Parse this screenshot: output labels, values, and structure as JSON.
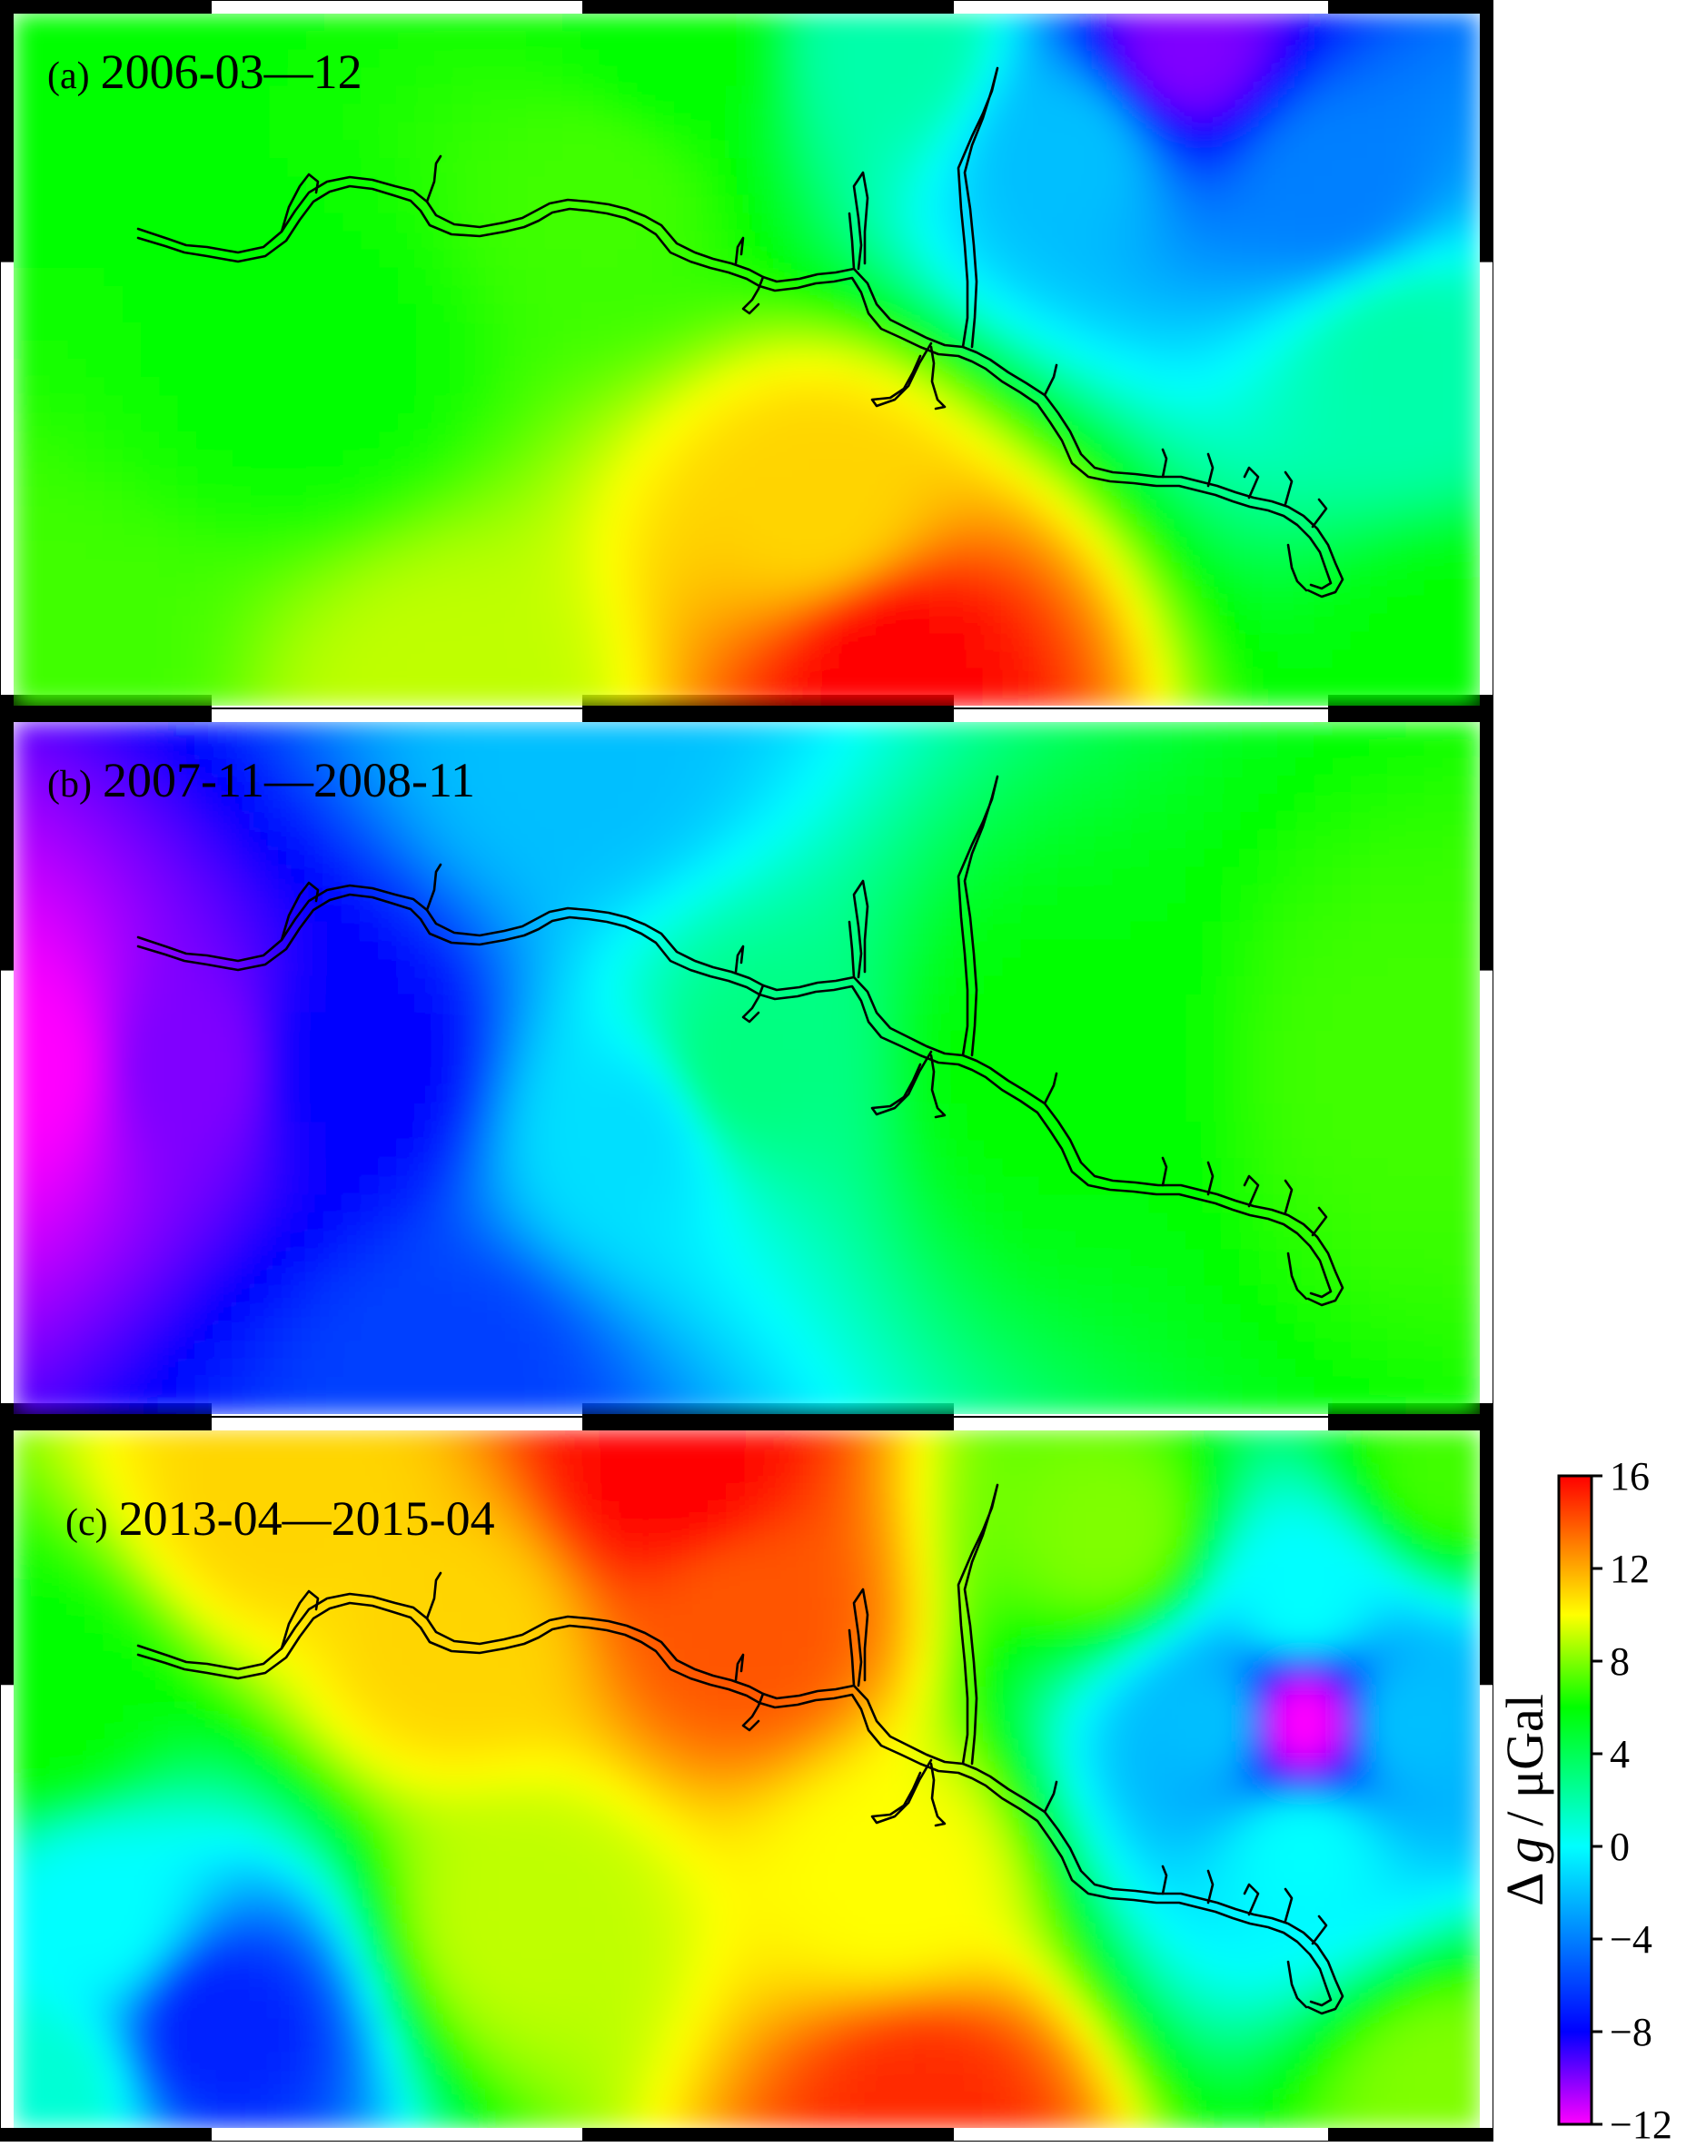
{
  "panels": [
    {
      "prefix": "(a)",
      "period": "2006-03—12",
      "field": [
        {
          "at": [
            0.2,
            0.5
          ],
          "v": 6
        },
        {
          "at": [
            0.6,
            0.95
          ],
          "v": 16
        },
        {
          "at": [
            0.55,
            0.72
          ],
          "v": 11
        },
        {
          "at": [
            0.3,
            1.0
          ],
          "v": 9
        },
        {
          "at": [
            0.8,
            0.05
          ],
          "v": -10
        },
        {
          "at": [
            0.72,
            0.2
          ],
          "v": -2
        },
        {
          "at": [
            0.95,
            0.5
          ],
          "v": 2
        },
        {
          "at": [
            0.9,
            0.25
          ],
          "v": -4
        },
        {
          "at": [
            0.02,
            0.05
          ],
          "v": 6
        },
        {
          "at": [
            0.4,
            0.25
          ],
          "v": 7
        },
        {
          "at": [
            0.02,
            0.95
          ],
          "v": 7
        },
        {
          "at": [
            0.99,
            0.95
          ],
          "v": 6
        },
        {
          "at": [
            0.45,
            0.05
          ],
          "v": 6
        },
        {
          "at": [
            0.6,
            0.05
          ],
          "v": 2
        }
      ]
    },
    {
      "prefix": "(b)",
      "period": "2007-11—2008-11",
      "field": [
        {
          "at": [
            0.01,
            0.5
          ],
          "v": -12
        },
        {
          "at": [
            0.23,
            0.5
          ],
          "v": -8
        },
        {
          "at": [
            0.42,
            0.6
          ],
          "v": -1
        },
        {
          "at": [
            0.5,
            0.5
          ],
          "v": 3
        },
        {
          "at": [
            0.7,
            0.5
          ],
          "v": 6
        },
        {
          "at": [
            0.95,
            0.5
          ],
          "v": 7
        },
        {
          "at": [
            0.38,
            0.05
          ],
          "v": -2
        },
        {
          "at": [
            0.3,
            0.95
          ],
          "v": -6
        },
        {
          "at": [
            0.12,
            0.5
          ],
          "v": -10
        }
      ]
    },
    {
      "prefix": "(c)",
      "period": "2013-04—2015-04",
      "field": [
        {
          "at": [
            0.45,
            0.05
          ],
          "v": 16
        },
        {
          "at": [
            0.5,
            0.28
          ],
          "v": 14
        },
        {
          "at": [
            0.3,
            0.3
          ],
          "v": 11
        },
        {
          "at": [
            0.18,
            0.1
          ],
          "v": 11
        },
        {
          "at": [
            0.88,
            0.42
          ],
          "v": -12
        },
        {
          "at": [
            0.95,
            0.42
          ],
          "v": -2
        },
        {
          "at": [
            0.82,
            0.42
          ],
          "v": -2
        },
        {
          "at": [
            0.88,
            0.25
          ],
          "v": 0
        },
        {
          "at": [
            0.88,
            0.6
          ],
          "v": 0
        },
        {
          "at": [
            0.14,
            0.86
          ],
          "v": -7
        },
        {
          "at": [
            0.06,
            0.7
          ],
          "v": 0
        },
        {
          "at": [
            0.02,
            0.95
          ],
          "v": 1
        },
        {
          "at": [
            0.62,
            0.98
          ],
          "v": 15
        },
        {
          "at": [
            0.6,
            0.65
          ],
          "v": 10
        },
        {
          "at": [
            0.02,
            0.4
          ],
          "v": 6
        },
        {
          "at": [
            0.75,
            0.15
          ],
          "v": 8
        },
        {
          "at": [
            0.98,
            0.05
          ],
          "v": 7
        },
        {
          "at": [
            0.98,
            0.95
          ],
          "v": 8
        },
        {
          "at": [
            0.35,
            0.7
          ],
          "v": 9
        }
      ]
    }
  ],
  "colorbar": {
    "title_prefix": "Δ",
    "title_var": "g",
    "title_unit": "/ μGal",
    "ticks": [
      16,
      12,
      8,
      4,
      0,
      -4,
      -8,
      -12
    ],
    "tick_labels": [
      "16",
      "12",
      "8",
      "4",
      "0",
      "−4",
      "−8",
      "−12"
    ],
    "range": [
      -12,
      16
    ],
    "colors": [
      "#ff00ff",
      "#0000ff",
      "#00ffff",
      "#00ff00",
      "#ffff00",
      "#ff0000"
    ]
  },
  "reservoir_outline": {
    "color": "#000000"
  }
}
